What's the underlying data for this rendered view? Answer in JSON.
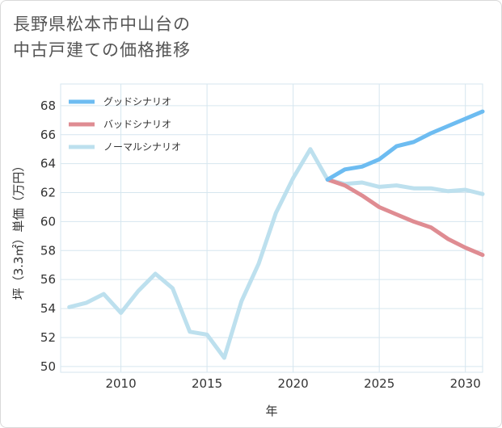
{
  "title_lines": [
    "長野県松本市中山台の",
    "中古戸建ての価格推移"
  ],
  "colors": {
    "good": "#6dbcf1",
    "bad": "#df8c92",
    "normal": "#bde0ee",
    "grid": "#d6e6ef",
    "axis": "#333333"
  },
  "chart_data": {
    "type": "line",
    "title": "長野県松本市中山台の中古戸建ての価格推移",
    "xlabel": "年",
    "ylabel": "坪（3.3㎡）単価（万円）",
    "xlim": [
      2006.5,
      2031
    ],
    "ylim": [
      49.6,
      69.5
    ],
    "xticks": [
      2010,
      2015,
      2020,
      2025,
      2030
    ],
    "yticks": [
      50,
      52,
      54,
      56,
      58,
      60,
      62,
      64,
      66,
      68
    ],
    "legend_position": "top-left",
    "series": [
      {
        "key": "good",
        "name": "グッドシナリオ",
        "x": [
          2022,
          2023,
          2024,
          2025,
          2026,
          2027,
          2028,
          2029,
          2030,
          2031
        ],
        "values": [
          62.9,
          63.6,
          63.8,
          64.3,
          65.2,
          65.5,
          66.1,
          66.6,
          67.1,
          67.6
        ]
      },
      {
        "key": "bad",
        "name": "バッドシナリオ",
        "x": [
          2022,
          2023,
          2024,
          2025,
          2026,
          2027,
          2028,
          2029,
          2030,
          2031
        ],
        "values": [
          62.9,
          62.5,
          61.8,
          61.0,
          60.5,
          60.0,
          59.6,
          58.8,
          58.2,
          57.7
        ]
      },
      {
        "key": "normal",
        "name": "ノーマルシナリオ",
        "x": [
          2007,
          2008,
          2009,
          2010,
          2011,
          2012,
          2013,
          2014,
          2015,
          2016,
          2017,
          2018,
          2019,
          2020,
          2021,
          2022,
          2023,
          2024,
          2025,
          2026,
          2027,
          2028,
          2029,
          2030,
          2031
        ],
        "values": [
          54.1,
          54.4,
          55.0,
          53.7,
          55.2,
          56.4,
          55.4,
          52.4,
          52.2,
          50.6,
          54.5,
          57.1,
          60.6,
          63.0,
          65.0,
          62.9,
          62.6,
          62.7,
          62.4,
          62.5,
          62.3,
          62.3,
          62.1,
          62.2,
          61.9
        ]
      }
    ]
  }
}
